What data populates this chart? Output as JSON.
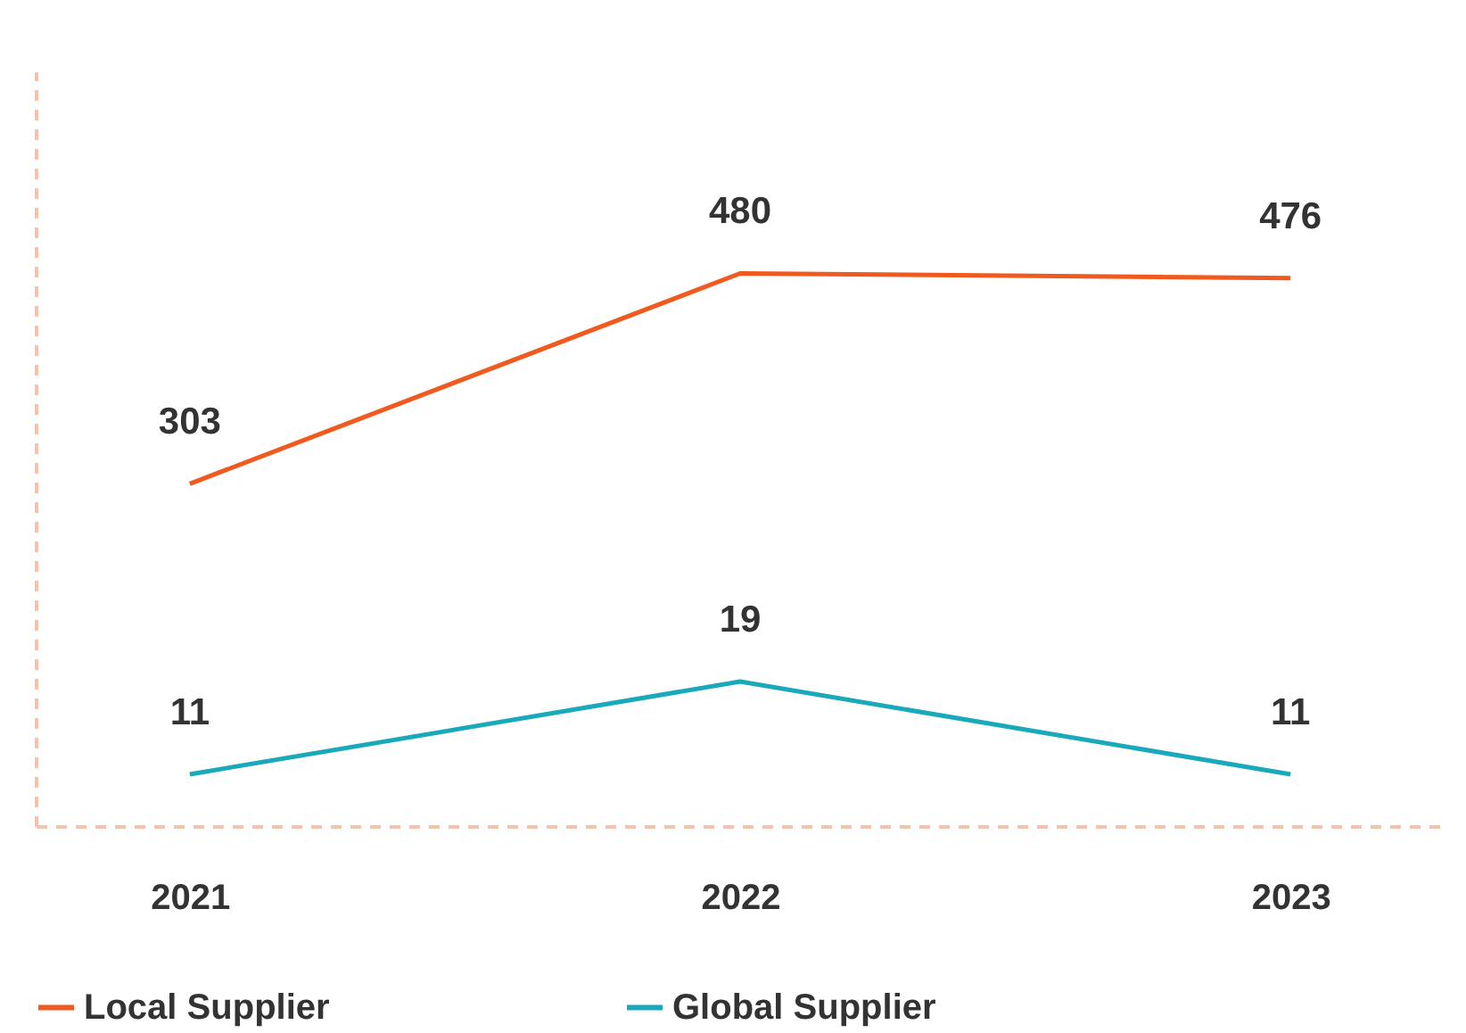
{
  "chart_data": {
    "type": "line",
    "categories": [
      "2021",
      "2022",
      "2023"
    ],
    "series": [
      {
        "name": "Local Supplier",
        "color": "#f05a1e",
        "values": [
          303,
          480,
          476
        ]
      },
      {
        "name": "Global Supplier",
        "color": "#1aa9bb",
        "values": [
          11,
          19,
          11
        ],
        "axis": "y2"
      }
    ],
    "ylim": [
      15,
      650
    ],
    "data_labels": true,
    "legend": "bottom",
    "marker": "none",
    "line_style": "solid"
  }
}
